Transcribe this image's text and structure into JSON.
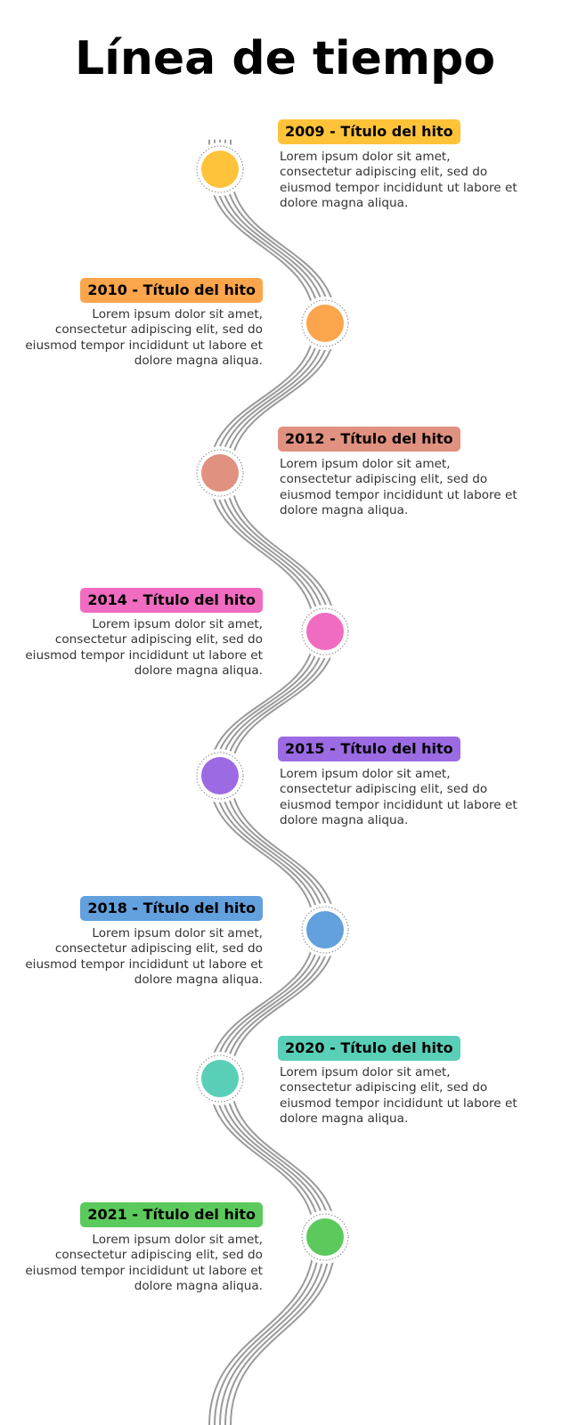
{
  "title": "Línea de tiempo",
  "milestones": [
    {
      "label": "2009 - Título del hito",
      "color": "#FFC33A",
      "description": "Lorem ipsum dolor sit amet, consectetur adipiscing elit, sed do eiusmod tempor incididunt ut labore et dolore magna aliqua."
    },
    {
      "label": "2010 - Título del hito",
      "color": "#FBA54C",
      "description": "Lorem ipsum dolor sit amet, consectetur adipiscing elit, sed do eiusmod tempor incididunt ut labore et dolore magna aliqua."
    },
    {
      "label": "2012 - Título del hito",
      "color": "#E0917F",
      "description": "Lorem ipsum dolor sit amet, consectetur adipiscing elit, sed do eiusmod tempor incididunt ut labore et dolore magna aliqua."
    },
    {
      "label": "2014 - Título del hito",
      "color": "#F06CC0",
      "description": "Lorem ipsum dolor sit amet, consectetur adipiscing elit, sed do eiusmod tempor incididunt ut labore et dolore magna aliqua."
    },
    {
      "label": "2015 - Título del hito",
      "color": "#9C6AE3",
      "description": "Lorem ipsum dolor sit amet, consectetur adipiscing elit, sed do eiusmod tempor incididunt ut labore et dolore magna aliqua."
    },
    {
      "label": "2018 - Título del hito",
      "color": "#62A0DE",
      "description": "Lorem ipsum dolor sit amet, consectetur adipiscing elit, sed do eiusmod tempor incididunt ut labore et dolore magna aliqua."
    },
    {
      "label": "2020 - Título del hito",
      "color": "#5ACFB8",
      "description": "Lorem ipsum dolor sit amet, consectetur adipiscing elit, sed do eiusmod tempor incididunt ut labore et dolore magna aliqua."
    },
    {
      "label": "2021 - Título del hito",
      "color": "#5CC95C",
      "description": "Lorem ipsum dolor sit amet, consectetur adipiscing elit, sed do eiusmod tempor incididunt ut labore et dolore magna aliqua."
    }
  ],
  "colors": {
    "path": "#9A9A9A",
    "dots_ring": "#888888"
  }
}
